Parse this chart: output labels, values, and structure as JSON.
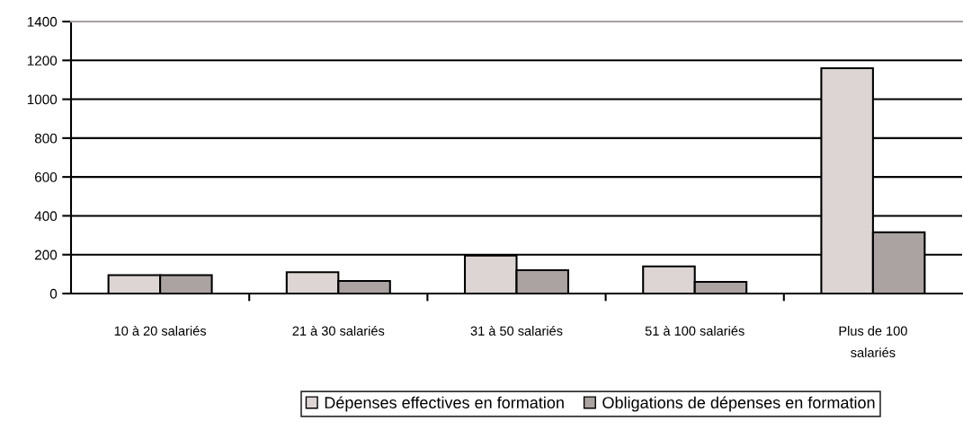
{
  "chart_data": {
    "type": "bar",
    "categories": [
      "10 à 20 salariés",
      "21 à 30 salariés",
      "31 à 50 salariés",
      "51 à 100 salariés",
      "Plus de 100\nsalariés"
    ],
    "series": [
      {
        "name": "Dépenses effectives en formation",
        "color": "#dcd5d3",
        "values": [
          95,
          110,
          195,
          140,
          1160
        ]
      },
      {
        "name": "Obligations de dépenses en formation",
        "color": "#aba3a1",
        "values": [
          95,
          65,
          120,
          60,
          315
        ]
      }
    ],
    "ylim": [
      0,
      1400
    ],
    "yticks": [
      0,
      200,
      400,
      600,
      800,
      1000,
      1200,
      1400
    ],
    "grid": "y",
    "legend": "bottom"
  }
}
